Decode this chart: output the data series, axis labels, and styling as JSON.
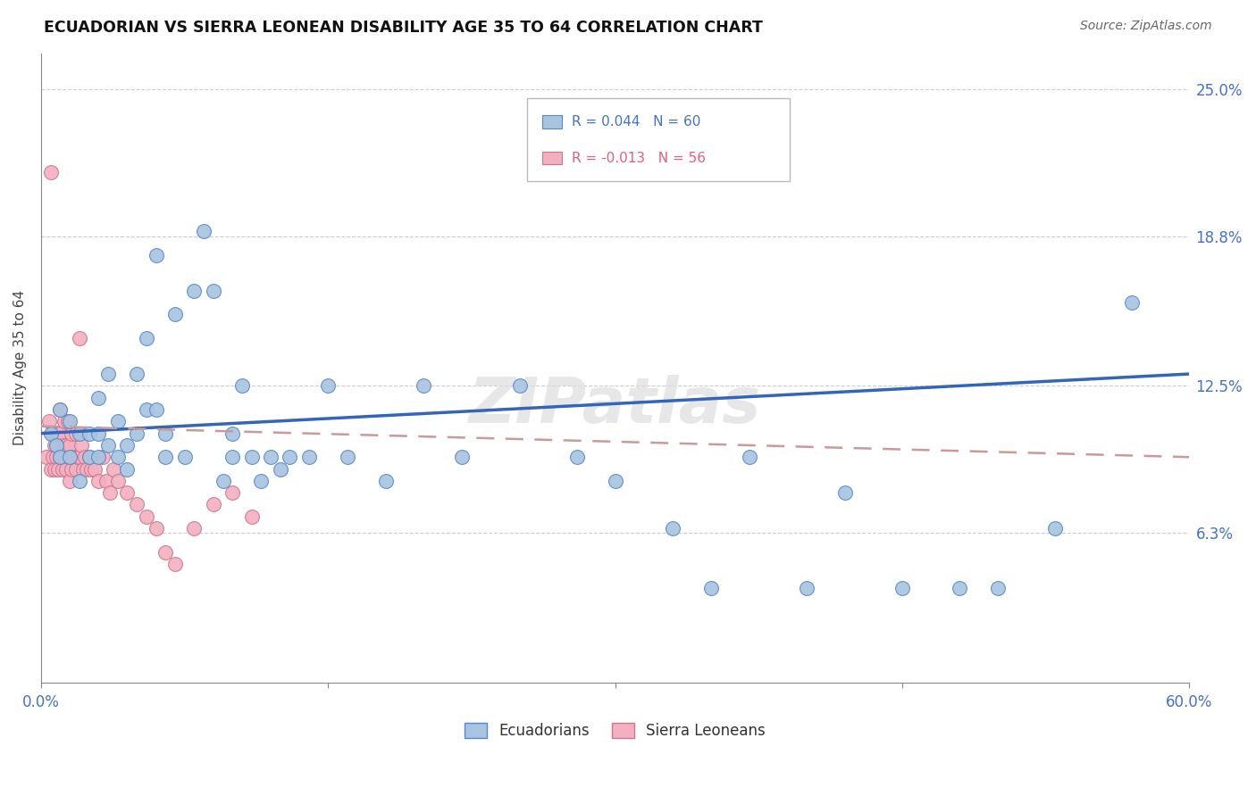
{
  "title": "ECUADORIAN VS SIERRA LEONEAN DISABILITY AGE 35 TO 64 CORRELATION CHART",
  "source": "Source: ZipAtlas.com",
  "ylabel": "Disability Age 35 to 64",
  "xlim": [
    0.0,
    0.6
  ],
  "ylim": [
    0.0,
    0.265
  ],
  "ytick_positions": [
    0.063,
    0.125,
    0.188,
    0.25
  ],
  "ytick_labels": [
    "6.3%",
    "12.5%",
    "18.8%",
    "25.0%"
  ],
  "r_ecuadorian": 0.044,
  "n_ecuadorian": 60,
  "r_sierraleone": -0.013,
  "n_sierraleone": 56,
  "color_blue_face": "#a8c4e0",
  "color_blue_edge": "#5588cc",
  "color_pink_face": "#f4b0c0",
  "color_pink_edge": "#cc7788",
  "color_blue_line": "#3366bb",
  "color_pink_line": "#cc9999",
  "color_text_blue": "#4472c4",
  "color_text_pink": "#e06080",
  "watermark": "ZIPatlas",
  "ecu_x": [
    0.005,
    0.008,
    0.01,
    0.01,
    0.015,
    0.015,
    0.02,
    0.02,
    0.025,
    0.025,
    0.03,
    0.03,
    0.03,
    0.035,
    0.035,
    0.04,
    0.04,
    0.045,
    0.045,
    0.05,
    0.05,
    0.055,
    0.055,
    0.06,
    0.06,
    0.065,
    0.065,
    0.07,
    0.075,
    0.08,
    0.085,
    0.09,
    0.095,
    0.1,
    0.1,
    0.105,
    0.11,
    0.115,
    0.12,
    0.125,
    0.13,
    0.14,
    0.15,
    0.16,
    0.18,
    0.2,
    0.22,
    0.25,
    0.28,
    0.3,
    0.33,
    0.35,
    0.37,
    0.4,
    0.42,
    0.45,
    0.48,
    0.5,
    0.53,
    0.57
  ],
  "ecu_y": [
    0.105,
    0.1,
    0.095,
    0.115,
    0.095,
    0.11,
    0.085,
    0.105,
    0.095,
    0.105,
    0.095,
    0.12,
    0.105,
    0.13,
    0.1,
    0.095,
    0.11,
    0.09,
    0.1,
    0.13,
    0.105,
    0.145,
    0.115,
    0.18,
    0.115,
    0.095,
    0.105,
    0.155,
    0.095,
    0.165,
    0.19,
    0.165,
    0.085,
    0.095,
    0.105,
    0.125,
    0.095,
    0.085,
    0.095,
    0.09,
    0.095,
    0.095,
    0.125,
    0.095,
    0.085,
    0.125,
    0.095,
    0.125,
    0.095,
    0.085,
    0.065,
    0.04,
    0.095,
    0.04,
    0.08,
    0.04,
    0.04,
    0.04,
    0.065,
    0.16
  ],
  "sl_x": [
    0.003,
    0.004,
    0.005,
    0.005,
    0.006,
    0.006,
    0.007,
    0.007,
    0.008,
    0.008,
    0.009,
    0.009,
    0.01,
    0.01,
    0.01,
    0.011,
    0.011,
    0.012,
    0.012,
    0.013,
    0.013,
    0.014,
    0.014,
    0.015,
    0.015,
    0.016,
    0.016,
    0.017,
    0.018,
    0.018,
    0.019,
    0.02,
    0.02,
    0.021,
    0.022,
    0.023,
    0.024,
    0.025,
    0.026,
    0.028,
    0.03,
    0.032,
    0.034,
    0.036,
    0.038,
    0.04,
    0.045,
    0.05,
    0.055,
    0.06,
    0.065,
    0.07,
    0.08,
    0.09,
    0.1,
    0.11
  ],
  "sl_y": [
    0.095,
    0.11,
    0.09,
    0.215,
    0.095,
    0.105,
    0.09,
    0.1,
    0.095,
    0.105,
    0.09,
    0.105,
    0.095,
    0.105,
    0.115,
    0.09,
    0.1,
    0.095,
    0.11,
    0.09,
    0.1,
    0.095,
    0.11,
    0.085,
    0.1,
    0.09,
    0.105,
    0.095,
    0.09,
    0.105,
    0.095,
    0.145,
    0.095,
    0.1,
    0.09,
    0.095,
    0.09,
    0.095,
    0.09,
    0.09,
    0.085,
    0.095,
    0.085,
    0.08,
    0.09,
    0.085,
    0.08,
    0.075,
    0.07,
    0.065,
    0.055,
    0.05,
    0.065,
    0.075,
    0.08,
    0.07
  ],
  "ecu_trend_x": [
    0.0,
    0.6
  ],
  "ecu_trend_y": [
    0.105,
    0.13
  ],
  "sl_trend_x": [
    0.0,
    0.6
  ],
  "sl_trend_y": [
    0.108,
    0.095
  ]
}
